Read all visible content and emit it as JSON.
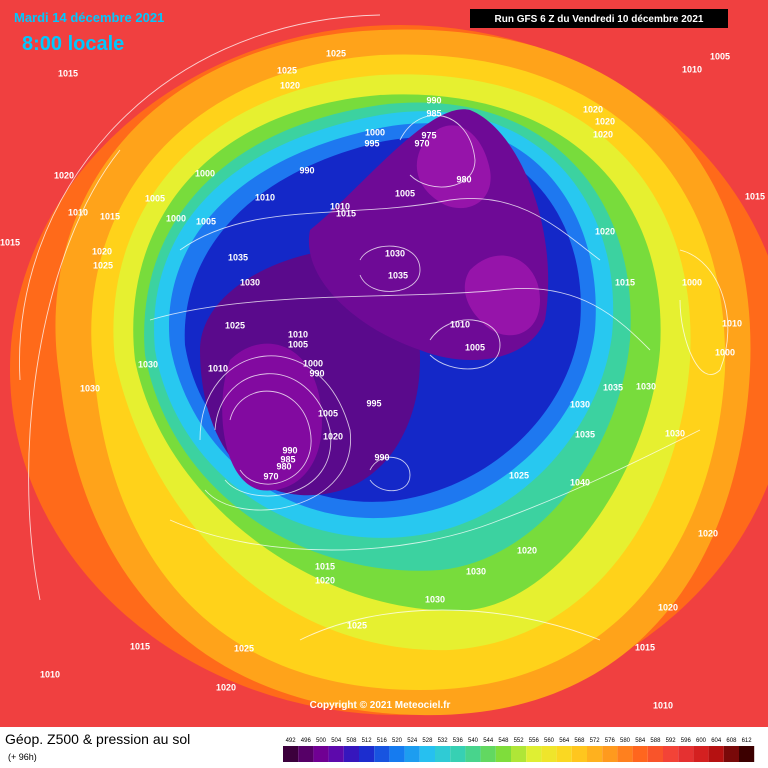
{
  "header": {
    "date": "Mardi 14 décembre 2021",
    "time": "8:00 locale",
    "run": "Run GFS 6 Z du Vendredi 10 décembre 2021"
  },
  "map": {
    "copyright": "Copyright © 2021 Meteociel.fr",
    "isobar_labels": [
      1025,
      1015,
      1025,
      1020,
      1010,
      1005,
      990,
      985,
      975,
      970,
      1000,
      995,
      1020,
      1020,
      1020,
      1020,
      1000,
      990,
      980,
      1005,
      1005,
      1010,
      1010,
      1015,
      1000,
      1005,
      1010,
      1015,
      1015,
      1015,
      1020,
      1025,
      1035,
      1030,
      1035,
      1020,
      1030,
      1015,
      1000,
      1025,
      1010,
      1005,
      1010,
      1005,
      1010,
      1000,
      1030,
      1010,
      1000,
      990,
      1030,
      1035,
      1030,
      995,
      1030,
      1005,
      1020,
      1035,
      1030,
      990,
      985,
      980,
      970,
      990,
      1025,
      1040,
      1020,
      1020,
      1015,
      1020,
      1030,
      1030,
      1020,
      1025,
      1025,
      1015,
      1015,
      1010,
      1020,
      1010
    ]
  },
  "footer": {
    "title": "Géop. Z500 & pression au sol",
    "lead": "(+ 96h)",
    "scale": [
      492,
      496,
      500,
      504,
      508,
      512,
      516,
      520,
      524,
      528,
      532,
      536,
      540,
      544,
      548,
      552,
      556,
      560,
      564,
      568,
      572,
      576,
      580,
      584,
      588,
      592,
      596,
      600,
      604,
      608,
      612
    ]
  }
}
